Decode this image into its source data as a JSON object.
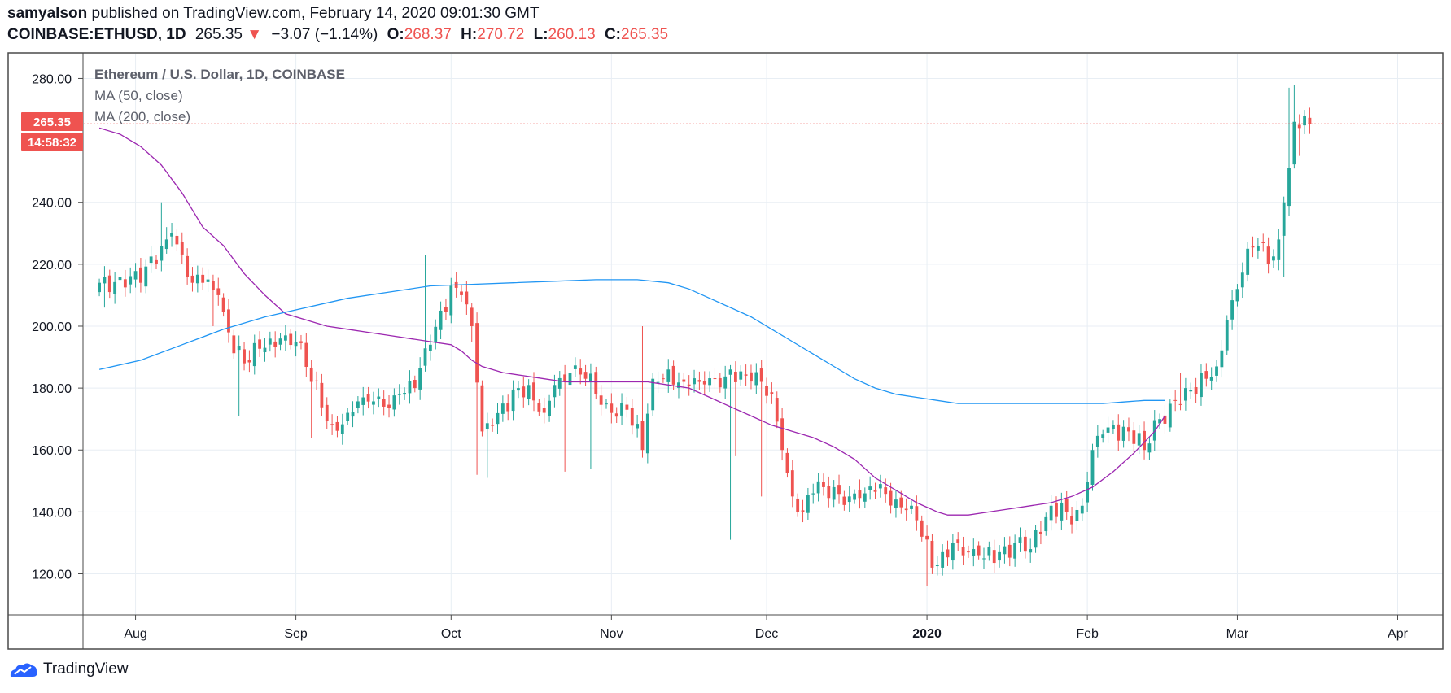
{
  "header": {
    "author": "samyalson",
    "published_text": "published on TradingView.com, February 14, 2020 09:01:30 GMT",
    "symbol": "COINBASE:ETHUSD, 1D",
    "last": "265.35",
    "arrow": "▼",
    "change": "−3.07 (−1.14%)",
    "o_label": "O:",
    "o_value": "268.37",
    "h_label": "H:",
    "h_value": "270.72",
    "l_label": "L:",
    "l_value": "260.13",
    "c_label": "C:",
    "c_value": "265.35"
  },
  "legend": {
    "title": "Ethereum / U.S. Dollar, 1D, COINBASE",
    "ma50": "MA (50, close)",
    "ma200": "MA (200, close)"
  },
  "price_tag": {
    "price": "265.35",
    "countdown": "14:58:32"
  },
  "footer": {
    "brand": "TradingView"
  },
  "colors": {
    "up": "#26a69a",
    "down": "#ef5350",
    "ma50": "#9c27b0",
    "ma200": "#2196f3",
    "grid": "#e8eef4"
  },
  "chart_data": {
    "type": "candlestick",
    "title": "Ethereum / U.S. Dollar, 1D, COINBASE",
    "ylim": [
      107,
      288
    ],
    "y_ticks": [
      "280.00",
      "240.00",
      "220.00",
      "200.00",
      "180.00",
      "160.00",
      "140.00",
      "120.00"
    ],
    "x_ticks": [
      "Aug",
      "Sep",
      "Oct",
      "Nov",
      "Dec",
      "2020",
      "Feb",
      "Mar",
      "Apr"
    ],
    "x_tick_days": [
      7,
      38,
      68,
      99,
      129,
      160,
      191,
      220,
      251
    ],
    "first_date": "2019-07-25",
    "last_price": 265.35,
    "close_path": [
      [
        0,
        214
      ],
      [
        4,
        216
      ],
      [
        8,
        214
      ],
      [
        12,
        226
      ],
      [
        14,
        230
      ],
      [
        18,
        214
      ],
      [
        20,
        214
      ],
      [
        23,
        210
      ],
      [
        25,
        198
      ],
      [
        28,
        188
      ],
      [
        32,
        193
      ],
      [
        35,
        196
      ],
      [
        38,
        195
      ],
      [
        41,
        182
      ],
      [
        45,
        168
      ],
      [
        48,
        172
      ],
      [
        51,
        177
      ],
      [
        55,
        174
      ],
      [
        58,
        178
      ],
      [
        61,
        180
      ],
      [
        64,
        194
      ],
      [
        66,
        205
      ],
      [
        68,
        213
      ],
      [
        70,
        210
      ],
      [
        72,
        200
      ],
      [
        74,
        166
      ],
      [
        76,
        168
      ],
      [
        78,
        175
      ],
      [
        81,
        180
      ],
      [
        84,
        176
      ],
      [
        86,
        172
      ],
      [
        88,
        181
      ],
      [
        91,
        185
      ],
      [
        94,
        183
      ],
      [
        96,
        178
      ],
      [
        98,
        175
      ],
      [
        102,
        173
      ],
      [
        105,
        160
      ],
      [
        107,
        183
      ],
      [
        110,
        186
      ],
      [
        113,
        182
      ],
      [
        116,
        182
      ],
      [
        119,
        183
      ],
      [
        122,
        186
      ],
      [
        125,
        184
      ],
      [
        128,
        182
      ],
      [
        130,
        178
      ],
      [
        132,
        160
      ],
      [
        134,
        145
      ],
      [
        136,
        140
      ],
      [
        138,
        146
      ],
      [
        140,
        148
      ],
      [
        142,
        148
      ],
      [
        145,
        145
      ],
      [
        148,
        146
      ],
      [
        151,
        149
      ],
      [
        154,
        144
      ],
      [
        157,
        142
      ],
      [
        159,
        132
      ],
      [
        161,
        122
      ],
      [
        163,
        127
      ],
      [
        165,
        130
      ],
      [
        167,
        126
      ],
      [
        169,
        128
      ],
      [
        171,
        125
      ],
      [
        174,
        127
      ],
      [
        177,
        130
      ],
      [
        180,
        128
      ],
      [
        182,
        133
      ],
      [
        184,
        142
      ],
      [
        186,
        143
      ],
      [
        188,
        136
      ],
      [
        190,
        142
      ],
      [
        192,
        160
      ],
      [
        194,
        165
      ],
      [
        196,
        168
      ],
      [
        199,
        166
      ],
      [
        202,
        160
      ],
      [
        205,
        170
      ],
      [
        208,
        176
      ],
      [
        210,
        180
      ],
      [
        212,
        178
      ],
      [
        214,
        183
      ],
      [
        216,
        187
      ],
      [
        218,
        202
      ],
      [
        220,
        212
      ],
      [
        222,
        225
      ],
      [
        224,
        226
      ],
      [
        226,
        220
      ],
      [
        228,
        228
      ],
      [
        229,
        240
      ],
      [
        231,
        266
      ],
      [
        232,
        264
      ],
      [
        233,
        268
      ],
      [
        234,
        265.35
      ]
    ],
    "volatile_days": [
      [
        1,
        206
      ],
      [
        12,
        240
      ],
      [
        13,
        232
      ],
      [
        22,
        200
      ],
      [
        27,
        171
      ],
      [
        41,
        164
      ],
      [
        63,
        223
      ],
      [
        72,
        195
      ],
      [
        73,
        152
      ],
      [
        75,
        151
      ],
      [
        90,
        153
      ],
      [
        95,
        154
      ],
      [
        105,
        200
      ],
      [
        122,
        131
      ],
      [
        123,
        158
      ],
      [
        128,
        145
      ],
      [
        160,
        116
      ],
      [
        168,
        126
      ],
      [
        209,
        185
      ],
      [
        229,
        216
      ],
      [
        230,
        277
      ],
      [
        231,
        278
      ],
      [
        232,
        255
      ],
      [
        233,
        262
      ]
    ],
    "ma50": [
      [
        0,
        264
      ],
      [
        4,
        262
      ],
      [
        8,
        258
      ],
      [
        12,
        252
      ],
      [
        16,
        243
      ],
      [
        20,
        232
      ],
      [
        24,
        226
      ],
      [
        28,
        217
      ],
      [
        32,
        210
      ],
      [
        36,
        204
      ],
      [
        40,
        202
      ],
      [
        44,
        200
      ],
      [
        48,
        199
      ],
      [
        52,
        198
      ],
      [
        56,
        197
      ],
      [
        60,
        196
      ],
      [
        64,
        195
      ],
      [
        68,
        194
      ],
      [
        70,
        192
      ],
      [
        72,
        189
      ],
      [
        74,
        187
      ],
      [
        78,
        185
      ],
      [
        82,
        184
      ],
      [
        86,
        183
      ],
      [
        90,
        182
      ],
      [
        94,
        182
      ],
      [
        98,
        182
      ],
      [
        102,
        182
      ],
      [
        106,
        182
      ],
      [
        110,
        181
      ],
      [
        114,
        180
      ],
      [
        118,
        177
      ],
      [
        122,
        174
      ],
      [
        126,
        171
      ],
      [
        130,
        168
      ],
      [
        134,
        166
      ],
      [
        138,
        164
      ],
      [
        142,
        161
      ],
      [
        146,
        157
      ],
      [
        150,
        151
      ],
      [
        154,
        147
      ],
      [
        158,
        143
      ],
      [
        162,
        140
      ],
      [
        164,
        139
      ],
      [
        168,
        139
      ],
      [
        172,
        140
      ],
      [
        176,
        141
      ],
      [
        180,
        142
      ],
      [
        184,
        143
      ],
      [
        188,
        145
      ],
      [
        192,
        148
      ],
      [
        196,
        153
      ],
      [
        200,
        159
      ],
      [
        204,
        166
      ],
      [
        206,
        171
      ]
    ],
    "ma200": [
      [
        0,
        186
      ],
      [
        8,
        189
      ],
      [
        16,
        194
      ],
      [
        24,
        199
      ],
      [
        32,
        203
      ],
      [
        40,
        206
      ],
      [
        48,
        209
      ],
      [
        56,
        211
      ],
      [
        64,
        213
      ],
      [
        72,
        213.5
      ],
      [
        80,
        214
      ],
      [
        88,
        214.5
      ],
      [
        96,
        215
      ],
      [
        104,
        215
      ],
      [
        110,
        214
      ],
      [
        114,
        212
      ],
      [
        118,
        209
      ],
      [
        122,
        206
      ],
      [
        126,
        203
      ],
      [
        130,
        199
      ],
      [
        134,
        195
      ],
      [
        138,
        191
      ],
      [
        142,
        187
      ],
      [
        146,
        183
      ],
      [
        150,
        180
      ],
      [
        154,
        178
      ],
      [
        158,
        177
      ],
      [
        162,
        176
      ],
      [
        166,
        175
      ],
      [
        170,
        175
      ],
      [
        174,
        175
      ],
      [
        178,
        175
      ],
      [
        182,
        175
      ],
      [
        186,
        175
      ],
      [
        190,
        175
      ],
      [
        194,
        175
      ],
      [
        198,
        175.5
      ],
      [
        202,
        176
      ],
      [
        206,
        176
      ]
    ]
  }
}
